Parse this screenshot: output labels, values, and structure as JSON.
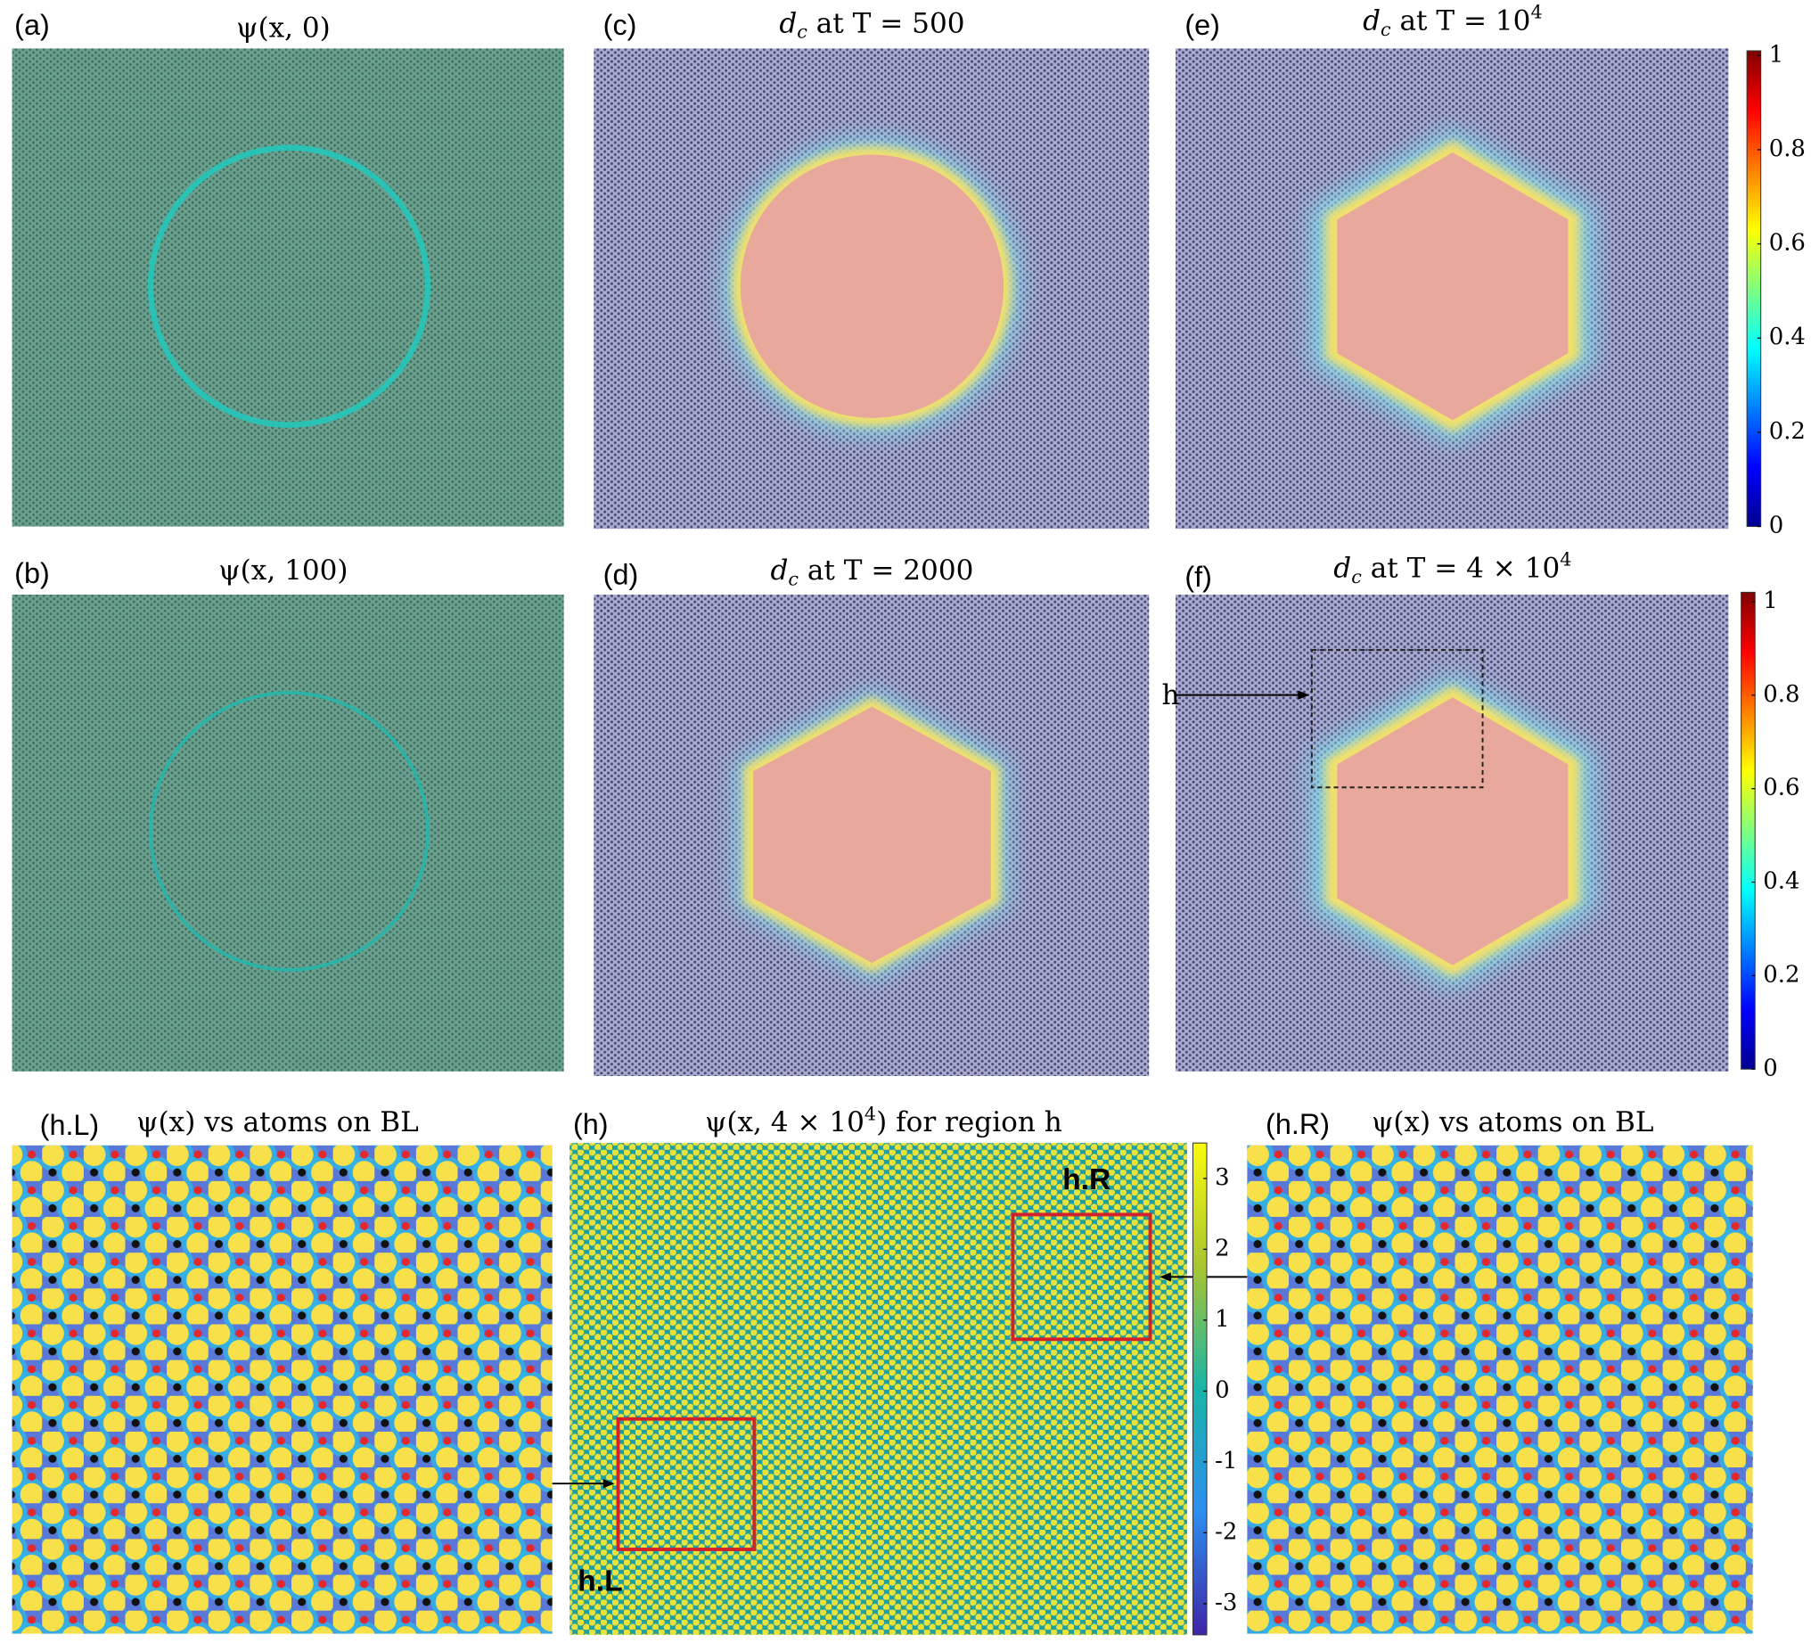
{
  "panels": [
    {
      "label": "(a)",
      "title": {
        "text": "ψ(x, 0)"
      }
    },
    {
      "label": "(b)",
      "title": {
        "text": "ψ(x, 100)"
      }
    },
    {
      "label": "(c)",
      "title": {
        "symbol": "d",
        "sub": "c",
        "text": " at T = 500"
      }
    },
    {
      "label": "(d)",
      "title": {
        "symbol": "d",
        "sub": "c",
        "text": " at T = 2000"
      }
    },
    {
      "label": "(e)",
      "title": {
        "symbol": "d",
        "sub": "c",
        "text": " at T = 10",
        "sup": "4"
      }
    },
    {
      "label": "(f)",
      "title": {
        "symbol": "d",
        "sub": "c",
        "text": " at T = 4 × 10",
        "sup": "4"
      }
    },
    {
      "label": "(h.L)",
      "title": {
        "text": "ψ(x) vs atoms on BL"
      }
    },
    {
      "label": "(h)",
      "title": {
        "text": "ψ(x, 4 × 10",
        "sup": "4",
        "tail": ") for region h"
      }
    },
    {
      "label": "(h.R)",
      "title": {
        "text": "ψ(x) vs atoms on BL"
      }
    }
  ],
  "annotations": {
    "region": "h",
    "right_box": "h.R",
    "left_box": "h.L"
  },
  "colorbars": [
    {
      "ylim": [
        0,
        1.01
      ],
      "yticks": [
        0,
        0.2,
        0.4,
        0.6,
        0.8,
        1
      ]
    },
    {
      "ylim": [
        0,
        1.02
      ],
      "yticks": [
        0,
        0.2,
        0.4,
        0.6,
        0.8,
        1
      ]
    },
    {
      "ylim": [
        -3.44,
        3.5
      ],
      "yticks": [
        -3,
        -2,
        -1,
        0,
        1,
        2,
        3
      ]
    }
  ]
}
